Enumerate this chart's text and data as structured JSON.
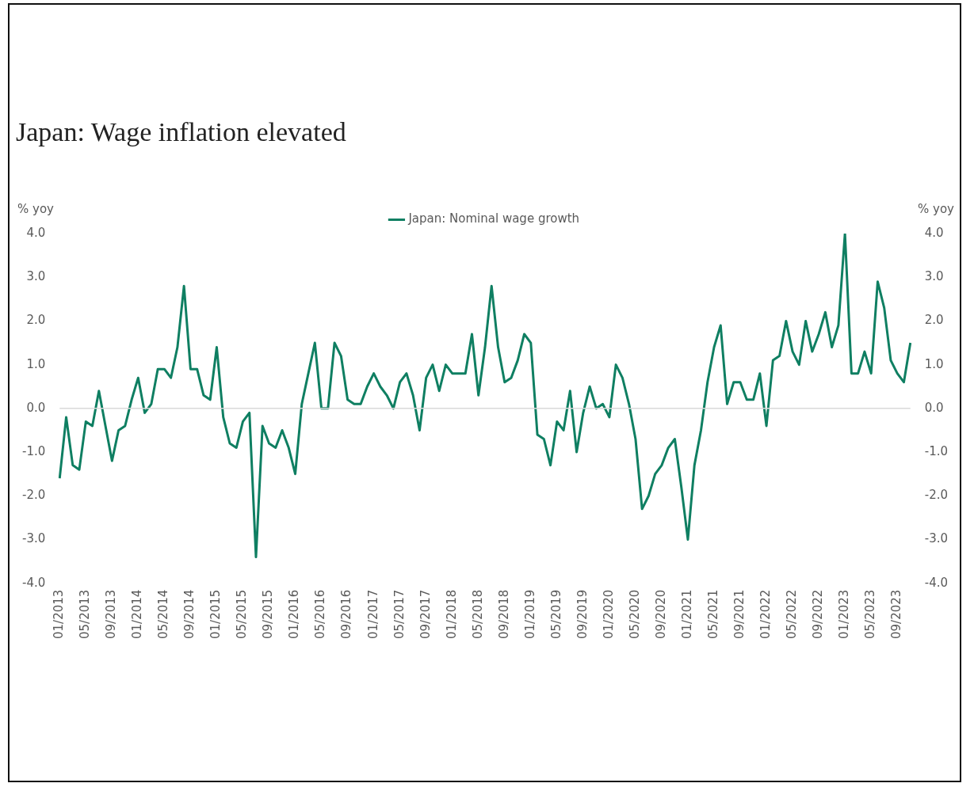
{
  "chart_data": {
    "type": "line",
    "title": "Japan: Wage inflation elevated",
    "ylabel": "% yoy",
    "y2label": "% yoy",
    "categories": [
      "01/2013",
      null,
      null,
      null,
      "05/2013",
      null,
      null,
      null,
      "09/2013",
      null,
      null,
      null,
      "01/2014",
      null,
      null,
      null,
      "05/2014",
      null,
      null,
      null,
      "09/2014",
      null,
      null,
      null,
      "01/2015",
      null,
      null,
      null,
      "05/2015",
      null,
      null,
      null,
      "09/2015",
      null,
      null,
      null,
      "01/2016",
      null,
      null,
      null,
      "05/2016",
      null,
      null,
      null,
      "09/2016",
      null,
      null,
      null,
      "01/2017",
      null,
      null,
      null,
      "05/2017",
      null,
      null,
      null,
      "09/2017",
      null,
      null,
      null,
      "01/2018",
      null,
      null,
      null,
      "05/2018",
      null,
      null,
      null,
      "09/2018",
      null,
      null,
      null,
      "01/2019",
      null,
      null,
      null,
      "05/2019",
      null,
      null,
      null,
      "09/2019",
      null,
      null,
      null,
      "01/2020",
      null,
      null,
      null,
      "05/2020",
      null,
      null,
      null,
      "09/2020",
      null,
      null,
      null,
      "01/2021",
      null,
      null,
      null,
      "05/2021",
      null,
      null,
      null,
      "09/2021",
      null,
      null,
      null,
      "01/2022",
      null,
      null,
      null,
      "05/2022",
      null,
      null,
      null,
      "09/2022",
      null,
      null,
      null,
      "01/2023",
      null,
      null,
      null,
      "05/2023",
      null,
      null,
      null,
      "09/2023",
      null,
      null
    ],
    "series": [
      {
        "name": "Japan: Nominal wage growth",
        "color": "#0f7f62",
        "values": [
          -1.6,
          -0.2,
          -1.3,
          -1.4,
          -0.3,
          -0.4,
          0.4,
          -0.4,
          -1.2,
          -0.5,
          -0.4,
          0.2,
          0.7,
          -0.1,
          0.1,
          0.9,
          0.9,
          0.7,
          1.4,
          2.8,
          0.9,
          0.9,
          0.3,
          0.2,
          1.4,
          -0.2,
          -0.8,
          -0.9,
          -0.3,
          -0.1,
          -3.4,
          -0.4,
          -0.8,
          -0.9,
          -0.5,
          -0.9,
          -1.5,
          0.1,
          0.8,
          1.5,
          0.0,
          0.0,
          1.5,
          1.2,
          0.2,
          0.1,
          0.1,
          0.5,
          0.8,
          0.5,
          0.3,
          0.0,
          0.6,
          0.8,
          0.3,
          -0.5,
          0.7,
          1.0,
          0.4,
          1.0,
          0.8,
          0.8,
          0.8,
          1.7,
          0.3,
          1.4,
          2.8,
          1.4,
          0.6,
          0.7,
          1.1,
          1.7,
          1.5,
          -0.6,
          -0.7,
          -1.3,
          -0.3,
          -0.5,
          0.4,
          -1.0,
          -0.1,
          0.5,
          0.0,
          0.1,
          -0.2,
          1.0,
          0.7,
          0.1,
          -0.7,
          -2.3,
          -2.0,
          -1.5,
          -1.3,
          -0.9,
          -0.7,
          -1.8,
          -3.0,
          -1.3,
          -0.5,
          0.6,
          1.4,
          1.9,
          0.1,
          0.6,
          0.6,
          0.2,
          0.2,
          0.8,
          -0.4,
          1.1,
          1.2,
          2.0,
          1.3,
          1.0,
          2.0,
          1.3,
          1.7,
          2.2,
          1.4,
          1.9,
          4.0,
          0.8,
          0.8,
          1.3,
          0.8,
          2.9,
          2.3,
          1.1,
          0.8,
          0.6,
          1.5
        ]
      }
    ],
    "ylim": [
      -4,
      4
    ],
    "yticks": [
      {
        "value": -4,
        "label": "-4.0"
      },
      {
        "value": -3,
        "label": "-3.0"
      },
      {
        "value": -2,
        "label": "-2.0"
      },
      {
        "value": -1,
        "label": "-1.0"
      },
      {
        "value": 0,
        "label": "0.0"
      },
      {
        "value": 1,
        "label": "1.0"
      },
      {
        "value": 2,
        "label": "2.0"
      },
      {
        "value": 3,
        "label": "3.0"
      },
      {
        "value": 4,
        "label": "4.0"
      }
    ],
    "y2lim": [
      -4,
      4
    ],
    "y2ticks": [
      {
        "value": -4,
        "label": "-4.0"
      },
      {
        "value": -3,
        "label": "-3.0"
      },
      {
        "value": -2,
        "label": "-2.0"
      },
      {
        "value": -1,
        "label": "-1.0"
      },
      {
        "value": 0,
        "label": "0.0"
      },
      {
        "value": 1,
        "label": "1.0"
      },
      {
        "value": 2,
        "label": "2.0"
      },
      {
        "value": 3,
        "label": "3.0"
      },
      {
        "value": 4,
        "label": "4.0"
      }
    ],
    "ref_lines": [
      {
        "axis": "y",
        "value": 0,
        "color": "#d9d9d9"
      }
    ],
    "grid": false,
    "legend": "top",
    "marker": "none",
    "line_style": "solid"
  }
}
